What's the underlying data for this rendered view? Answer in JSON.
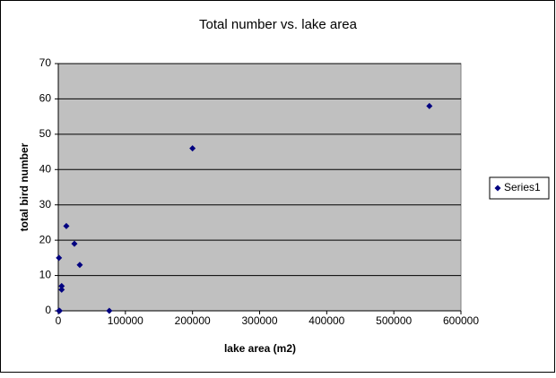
{
  "chart_data": {
    "type": "scatter",
    "title": "Total number vs. lake area",
    "x_label": "lake area (m2)",
    "y_label": "total bird number",
    "series": [
      {
        "name": "Series1",
        "color": "#000080",
        "x": [
          1000,
          1000,
          2000,
          5000,
          5000,
          12000,
          24000,
          32000,
          76000,
          200000,
          553000
        ],
        "values": [
          15,
          0,
          0,
          6,
          7,
          24,
          19,
          13,
          0,
          46,
          58
        ]
      }
    ],
    "xlim": [
      0,
      600000
    ],
    "xticks": [
      0,
      100000,
      200000,
      300000,
      400000,
      500000,
      600000
    ],
    "ylim": [
      0,
      70
    ],
    "yticks": [
      0,
      10,
      20,
      30,
      40,
      50,
      60,
      70
    ],
    "grid": true,
    "legend": "right"
  }
}
